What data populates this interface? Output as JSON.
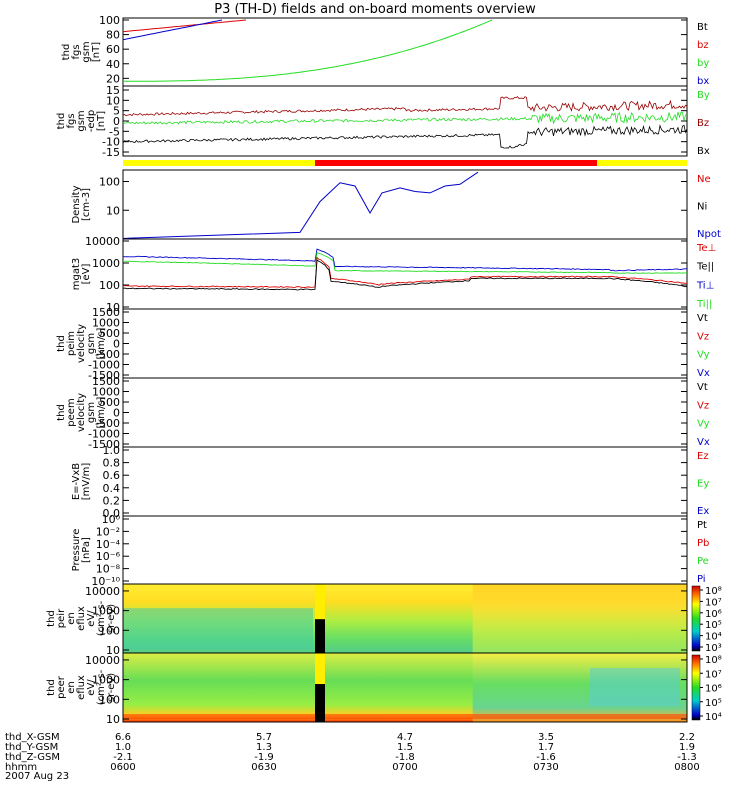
{
  "title": "P3 (TH-D) fields and on-board moments overview",
  "colors": {
    "black": "#000000",
    "red": "#dd0000",
    "green": "#22dd22",
    "blue": "#0000cc",
    "darkred": "#990000",
    "yellow": "#ffff00",
    "barred": "#ff0000"
  },
  "chart_data": [
    {
      "type": "line",
      "panel": "fgs_mag",
      "ylabel": [
        "thd",
        "fgs",
        "gsm",
        "[nT]"
      ],
      "yticks": [
        "100",
        "80",
        "60",
        "40",
        "20"
      ],
      "legend": [
        {
          "name": "Bt",
          "color": "#000000"
        },
        {
          "name": "bz",
          "color": "#dd0000"
        },
        {
          "name": "by",
          "color": "#22dd22"
        },
        {
          "name": "bx",
          "color": "#0000cc"
        }
      ]
    },
    {
      "type": "line",
      "panel": "fgs_edp",
      "ylabel": [
        "thd",
        "fgs",
        "gsm",
        "-edp",
        "[nT]"
      ],
      "yticks": [
        "15",
        "10",
        "5",
        "0",
        "-5",
        "-10",
        "-15"
      ],
      "legend": [
        {
          "name": "By",
          "color": "#22dd22"
        },
        {
          "name": "Bz",
          "color": "#990000"
        },
        {
          "name": "Bx",
          "color": "#000000"
        }
      ]
    },
    {
      "type": "line",
      "panel": "density",
      "ylabel": [
        "Density",
        "[cm-3]"
      ],
      "yticks": [
        "100",
        "10"
      ],
      "legend": [
        {
          "name": "Ne",
          "color": "#dd0000"
        },
        {
          "name": "Ni",
          "color": "#000000"
        },
        {
          "name": "Npot",
          "color": "#0000cc"
        }
      ]
    },
    {
      "type": "line",
      "panel": "temperature",
      "ylabel": [
        "mgat3",
        "[eV]"
      ],
      "yticks": [
        "10000",
        "1000",
        "100",
        "10"
      ],
      "legend": [
        {
          "name": "Te⊥",
          "color": "#dd0000"
        },
        {
          "name": "Te||",
          "color": "#000000"
        },
        {
          "name": "Ti⊥",
          "color": "#0000cc"
        },
        {
          "name": "Ti||",
          "color": "#22dd22"
        }
      ]
    },
    {
      "type": "line",
      "panel": "peim_velocity",
      "ylabel": [
        "thd",
        "peim",
        "velocity",
        "gsm",
        "[km/s]"
      ],
      "yticks": [
        "1500",
        "1000",
        "500",
        "0",
        "-500",
        "-1000",
        "-1500"
      ],
      "legend": [
        {
          "name": "Vt",
          "color": "#000000"
        },
        {
          "name": "Vz",
          "color": "#dd0000"
        },
        {
          "name": "Vy",
          "color": "#22dd22"
        },
        {
          "name": "Vx",
          "color": "#0000cc"
        }
      ]
    },
    {
      "type": "line",
      "panel": "peem_velocity",
      "ylabel": [
        "thd",
        "peem",
        "velocity",
        "gsm",
        "[km/s]"
      ],
      "yticks": [
        "1500",
        "1000",
        "500",
        "0",
        "-500",
        "-1000",
        "-1500"
      ],
      "legend": [
        {
          "name": "Vt",
          "color": "#000000"
        },
        {
          "name": "Vz",
          "color": "#dd0000"
        },
        {
          "name": "Vy",
          "color": "#22dd22"
        },
        {
          "name": "Vx",
          "color": "#0000cc"
        }
      ]
    },
    {
      "type": "line",
      "panel": "efield",
      "ylabel": [
        "E=-VxB",
        "[mV/m]"
      ],
      "yticks": [
        "1.0",
        "0.8",
        "0.6",
        "0.4",
        "0.2",
        "0.0"
      ],
      "legend": [
        {
          "name": "Ez",
          "color": "#dd0000"
        },
        {
          "name": "Ey",
          "color": "#22dd22"
        },
        {
          "name": "Ex",
          "color": "#0000cc"
        }
      ]
    },
    {
      "type": "line",
      "panel": "pressure",
      "ylabel": [
        "Pressure",
        "[nPa]"
      ],
      "yticks": [
        "10⁰",
        "10⁻²",
        "10⁻⁴",
        "10⁻⁶",
        "10⁻⁸",
        "10⁻¹⁰"
      ],
      "legend": [
        {
          "name": "Pt",
          "color": "#000000"
        },
        {
          "name": "Pb",
          "color": "#dd0000"
        },
        {
          "name": "Pe",
          "color": "#22dd22"
        },
        {
          "name": "Pi",
          "color": "#0000cc"
        }
      ]
    },
    {
      "type": "heatmap",
      "panel": "peir_spectrogram",
      "ylabel": [
        "thd",
        "peir",
        "en",
        "eflux",
        "eV/",
        "(cm²-s-",
        "sr-eV)"
      ],
      "yticks": [
        "10000",
        "1000",
        "100",
        "10"
      ],
      "colorbar_ticks": [
        "10⁸",
        "10⁷",
        "10⁶",
        "10⁵",
        "10⁴",
        "10³"
      ]
    },
    {
      "type": "heatmap",
      "panel": "peer_spectrogram",
      "ylabel": [
        "thd",
        "peer",
        "en",
        "eflux",
        "eV/",
        "(cm²-s-",
        "sr-eV)"
      ],
      "yticks": [
        "10000",
        "1000",
        "100",
        "10"
      ],
      "colorbar_ticks": [
        "10⁸",
        "10⁷",
        "10⁶",
        "10⁵",
        "10⁴"
      ]
    }
  ],
  "footer": {
    "rows": [
      {
        "label": "thd_X-GSM",
        "values": [
          "6.6",
          "5.7",
          "4.7",
          "3.5",
          "2.2"
        ]
      },
      {
        "label": "thd_Y-GSM",
        "values": [
          "1.0",
          "1.3",
          "1.5",
          "1.7",
          "1.9"
        ]
      },
      {
        "label": "thd_Z-GSM",
        "values": [
          "-2.1",
          "-1.9",
          "-1.8",
          "-1.6",
          "-1.3"
        ]
      },
      {
        "label": "hhmm",
        "values": [
          "0600",
          "0630",
          "0700",
          "0730",
          "0800"
        ]
      }
    ],
    "date": "2007 Aug 23"
  }
}
